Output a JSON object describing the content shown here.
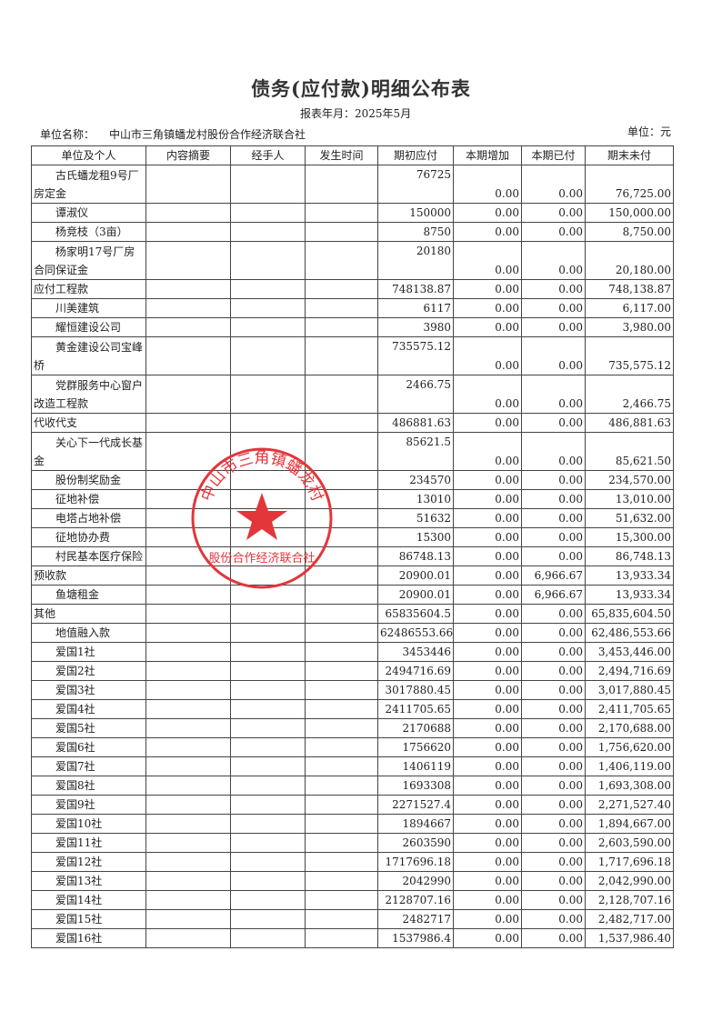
{
  "title": "债务(应付款)明细公布表",
  "period_label": "报表年月：",
  "period_value": "2025年5月",
  "unit_label": "单位名称：",
  "unit_value": "中山市三角镇蟠龙村股份合作经济联合社",
  "currency": "单位：元",
  "stamp": {
    "text_top": "中山市三角镇蟠龙村",
    "text_bottom": "股份合作经济联合社",
    "color": "#e2363b"
  },
  "headers": [
    "单位及个人",
    "内容摘要",
    "经手人",
    "发生时间",
    "期初应付",
    "本期增加",
    "本期已付",
    "期末未付"
  ],
  "rows": [
    {
      "name": "古氏蟠龙租9号厂房定金",
      "level": 1,
      "double": true,
      "opening": "76725",
      "increase": "0.00",
      "paid": "0.00",
      "closing": "76,725.00"
    },
    {
      "name": "谭淑仪",
      "level": 1,
      "double": false,
      "opening": "150000",
      "increase": "0.00",
      "paid": "0.00",
      "closing": "150,000.00"
    },
    {
      "name": "杨竞枝（3亩）",
      "level": 1,
      "double": false,
      "opening": "8750",
      "increase": "0.00",
      "paid": "0.00",
      "closing": "8,750.00"
    },
    {
      "name": "杨家明17号厂房合同保证金",
      "level": 1,
      "double": true,
      "opening": "20180",
      "increase": "0.00",
      "paid": "0.00",
      "closing": "20,180.00"
    },
    {
      "name": "应付工程款",
      "level": 0,
      "double": false,
      "opening": "748138.87",
      "increase": "0.00",
      "paid": "0.00",
      "closing": "748,138.87"
    },
    {
      "name": "川美建筑",
      "level": 1,
      "double": false,
      "opening": "6117",
      "increase": "0.00",
      "paid": "0.00",
      "closing": "6,117.00"
    },
    {
      "name": "耀恒建设公司",
      "level": 1,
      "double": false,
      "opening": "3980",
      "increase": "0.00",
      "paid": "0.00",
      "closing": "3,980.00"
    },
    {
      "name": "黄金建设公司宝峰桥",
      "level": 1,
      "double": true,
      "opening": "735575.12",
      "increase": "0.00",
      "paid": "0.00",
      "closing": "735,575.12"
    },
    {
      "name": "党群服务中心窗户改造工程款",
      "level": 1,
      "double": true,
      "opening": "2466.75",
      "increase": "0.00",
      "paid": "0.00",
      "closing": "2,466.75"
    },
    {
      "name": "代收代支",
      "level": 0,
      "double": false,
      "opening": "486881.63",
      "increase": "0.00",
      "paid": "0.00",
      "closing": "486,881.63"
    },
    {
      "name": "关心下一代成长基金",
      "level": 1,
      "double": true,
      "opening": "85621.5",
      "increase": "0.00",
      "paid": "0.00",
      "closing": "85,621.50"
    },
    {
      "name": "股份制奖励金",
      "level": 1,
      "double": false,
      "opening": "234570",
      "increase": "0.00",
      "paid": "0.00",
      "closing": "234,570.00"
    },
    {
      "name": "征地补偿",
      "level": 1,
      "double": false,
      "opening": "13010",
      "increase": "0.00",
      "paid": "0.00",
      "closing": "13,010.00"
    },
    {
      "name": "电塔占地补偿",
      "level": 1,
      "double": false,
      "opening": "51632",
      "increase": "0.00",
      "paid": "0.00",
      "closing": "51,632.00"
    },
    {
      "name": "征地协办费",
      "level": 1,
      "double": false,
      "opening": "15300",
      "increase": "0.00",
      "paid": "0.00",
      "closing": "15,300.00"
    },
    {
      "name": "村民基本医疗保险",
      "level": 1,
      "double": false,
      "opening": "86748.13",
      "increase": "0.00",
      "paid": "0.00",
      "closing": "86,748.13"
    },
    {
      "name": "预收款",
      "level": 0,
      "double": false,
      "opening": "20900.01",
      "increase": "0.00",
      "paid": "6,966.67",
      "closing": "13,933.34"
    },
    {
      "name": "鱼塘租金",
      "level": 1,
      "double": false,
      "opening": "20900.01",
      "increase": "0.00",
      "paid": "6,966.67",
      "closing": "13,933.34"
    },
    {
      "name": "其他",
      "level": 0,
      "double": false,
      "opening": "65835604.5",
      "increase": "0.00",
      "paid": "0.00",
      "closing": "65,835,604.50"
    },
    {
      "name": "地值融入款",
      "level": 1,
      "double": false,
      "opening": "62486553.66",
      "increase": "0.00",
      "paid": "0.00",
      "closing": "62,486,553.66"
    },
    {
      "name": "爱国1社",
      "level": 1,
      "double": false,
      "opening": "3453446",
      "increase": "0.00",
      "paid": "0.00",
      "closing": "3,453,446.00"
    },
    {
      "name": "爱国2社",
      "level": 1,
      "double": false,
      "opening": "2494716.69",
      "increase": "0.00",
      "paid": "0.00",
      "closing": "2,494,716.69"
    },
    {
      "name": "爱国3社",
      "level": 1,
      "double": false,
      "opening": "3017880.45",
      "increase": "0.00",
      "paid": "0.00",
      "closing": "3,017,880.45"
    },
    {
      "name": "爱国4社",
      "level": 1,
      "double": false,
      "opening": "2411705.65",
      "increase": "0.00",
      "paid": "0.00",
      "closing": "2,411,705.65"
    },
    {
      "name": "爱国5社",
      "level": 1,
      "double": false,
      "opening": "2170688",
      "increase": "0.00",
      "paid": "0.00",
      "closing": "2,170,688.00"
    },
    {
      "name": "爱国6社",
      "level": 1,
      "double": false,
      "opening": "1756620",
      "increase": "0.00",
      "paid": "0.00",
      "closing": "1,756,620.00"
    },
    {
      "name": "爱国7社",
      "level": 1,
      "double": false,
      "opening": "1406119",
      "increase": "0.00",
      "paid": "0.00",
      "closing": "1,406,119.00"
    },
    {
      "name": "爱国8社",
      "level": 1,
      "double": false,
      "opening": "1693308",
      "increase": "0.00",
      "paid": "0.00",
      "closing": "1,693,308.00"
    },
    {
      "name": "爱国9社",
      "level": 1,
      "double": false,
      "opening": "2271527.4",
      "increase": "0.00",
      "paid": "0.00",
      "closing": "2,271,527.40"
    },
    {
      "name": "爱国10社",
      "level": 1,
      "double": false,
      "opening": "1894667",
      "increase": "0.00",
      "paid": "0.00",
      "closing": "1,894,667.00"
    },
    {
      "name": "爱国11社",
      "level": 1,
      "double": false,
      "opening": "2603590",
      "increase": "0.00",
      "paid": "0.00",
      "closing": "2,603,590.00"
    },
    {
      "name": "爱国12社",
      "level": 1,
      "double": false,
      "opening": "1717696.18",
      "increase": "0.00",
      "paid": "0.00",
      "closing": "1,717,696.18"
    },
    {
      "name": "爱国13社",
      "level": 1,
      "double": false,
      "opening": "2042990",
      "increase": "0.00",
      "paid": "0.00",
      "closing": "2,042,990.00"
    },
    {
      "name": "爱国14社",
      "level": 1,
      "double": false,
      "opening": "2128707.16",
      "increase": "0.00",
      "paid": "0.00",
      "closing": "2,128,707.16"
    },
    {
      "name": "爱国15社",
      "level": 1,
      "double": false,
      "opening": "2482717",
      "increase": "0.00",
      "paid": "0.00",
      "closing": "2,482,717.00"
    },
    {
      "name": "爱国16社",
      "level": 1,
      "double": false,
      "opening": "1537986.4",
      "increase": "0.00",
      "paid": "0.00",
      "closing": "1,537,986.40"
    }
  ]
}
